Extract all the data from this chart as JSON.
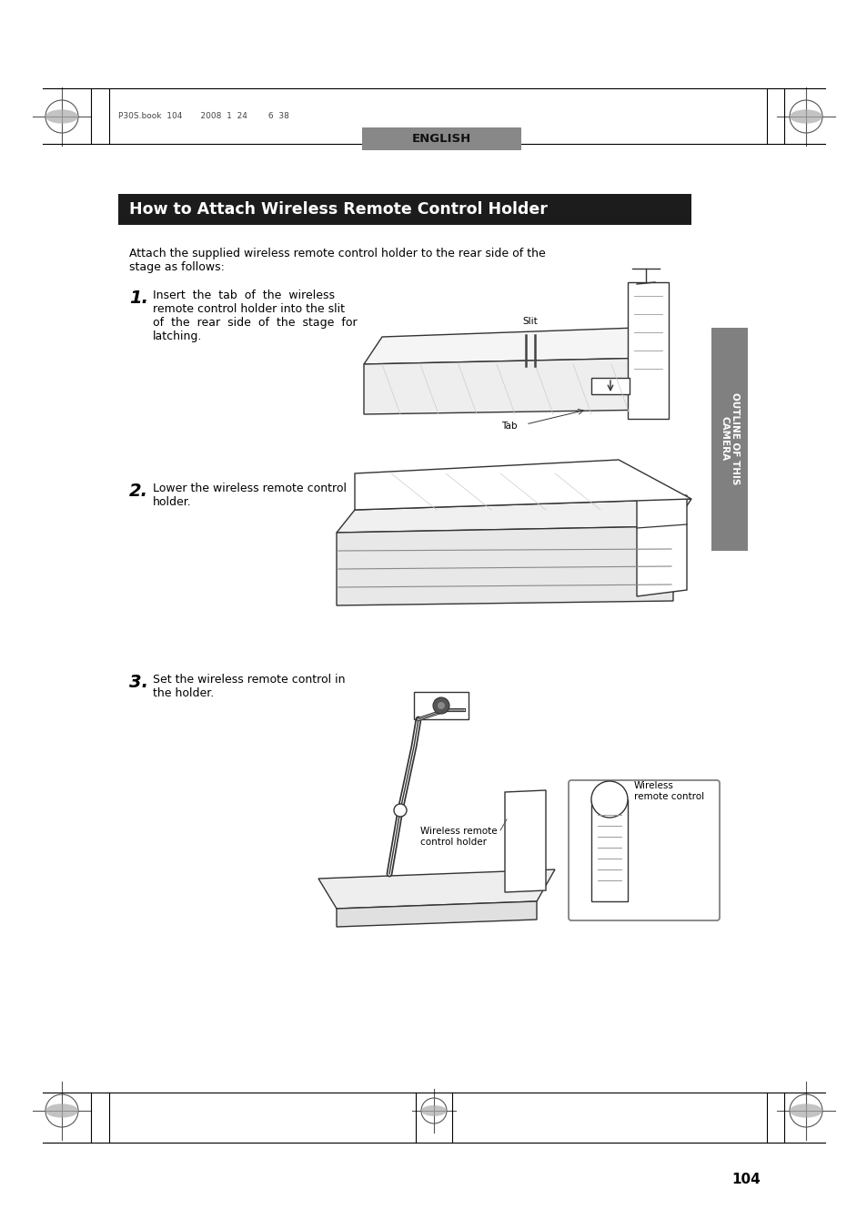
{
  "page_bg": "#ffffff",
  "header_text_latin": "P30S.book  104       2008  1  24        6  38",
  "header_text_size": 6.5,
  "english_text": "ENGLISH",
  "title_bg": "#1c1c1c",
  "title_text": "How to Attach Wireless Remote Control Holder",
  "title_text_color": "#ffffff",
  "title_fontsize": 12.5,
  "sidebar_bg": "#808080",
  "sidebar_text": "OUTLINE OF THIS\nCAMERA",
  "sidebar_text_color": "#ffffff",
  "sidebar_fontsize": 7.5,
  "intro_text": "Attach the supplied wireless remote control holder to the rear side of the\nstage as follows:",
  "intro_fontsize": 9,
  "step1_num": "1.",
  "step1_text": "Insert  the  tab  of  the  wireless\nremote control holder into the slit\nof  the  rear  side  of  the  stage  for\nlatching.",
  "step2_num": "2.",
  "step2_text": "Lower the wireless remote control\nholder.",
  "step3_num": "3.",
  "step3_text": "Set the wireless remote control in\nthe holder.",
  "step_fontsize": 9,
  "step_num_fontsize": 14,
  "page_number": "104",
  "page_num_fontsize": 11,
  "slit_label": "Slit",
  "tab_label": "Tab",
  "wireless_rc_label": "Wireless\nremote control",
  "wireless_holder_label": "Wireless remote\ncontrol holder",
  "label_fontsize": 7.5,
  "line_color": "#000000",
  "diagram_color": "#333333",
  "mark_color": "#555555"
}
